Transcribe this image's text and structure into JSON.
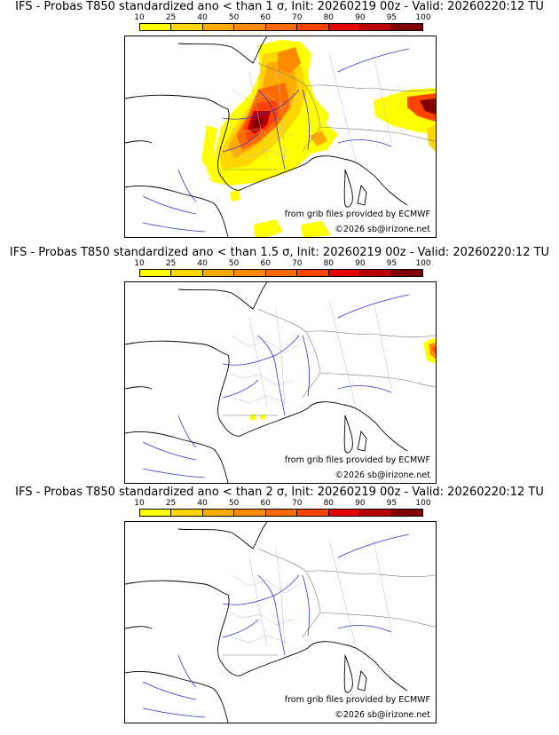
{
  "colorbar": {
    "ticks": [
      "10",
      "25",
      "40",
      "50",
      "60",
      "70",
      "80",
      "90",
      "95",
      "100"
    ],
    "colors": [
      "#ffff00",
      "#ffd700",
      "#ffaa00",
      "#ff8c00",
      "#ff6a00",
      "#ff4500",
      "#e60000",
      "#b80000",
      "#800000"
    ]
  },
  "panels": [
    {
      "title": "IFS - Probas T850  standardized ano < than 1 σ, Init: 20260219 00z - Valid: 20260220:12 TU",
      "credit_source": "from grib files provided by ECMWF",
      "credit_copyright": "©2026 sb@irizone.net",
      "max_probability_class": "100"
    },
    {
      "title": "IFS - Probas T850  standardized ano < than 1.5 σ, Init: 20260219 00z - Valid: 20260220:12 TU",
      "credit_source": "from grib files provided by ECMWF",
      "credit_copyright": "©2026 sb@irizone.net",
      "max_probability_class": "70"
    },
    {
      "title": "IFS - Probas T850  standardized ano < than 2 σ, Init: 20260219 00z - Valid: 20260220:12 TU",
      "credit_source": "from grib files provided by ECMWF",
      "credit_copyright": "©2026 sb@irizone.net",
      "max_probability_class": "0"
    }
  ]
}
